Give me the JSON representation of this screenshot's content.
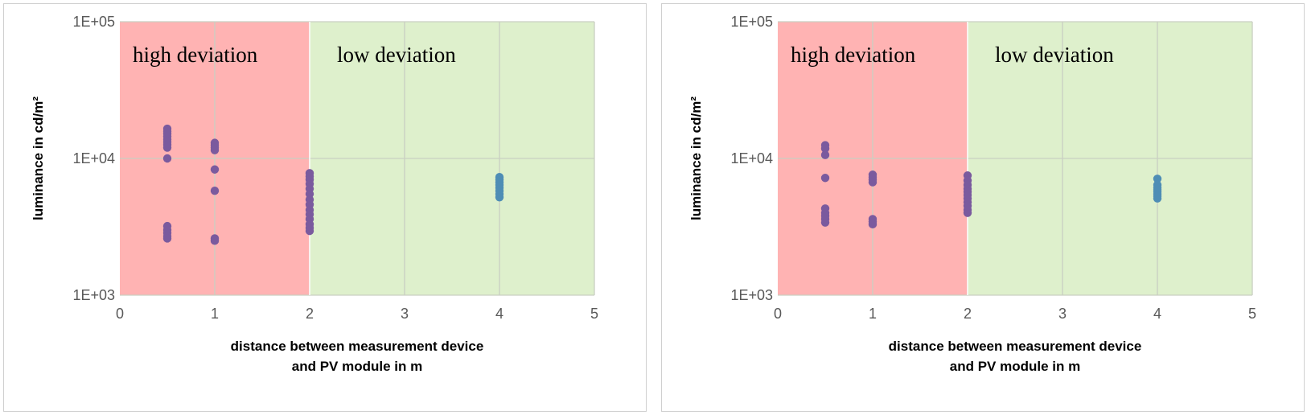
{
  "chart_data": [
    {
      "type": "scatter",
      "xlabel_lines": [
        "distance between measurement device",
        "and PV module in m"
      ],
      "ylabel": "luminance in cd/m²",
      "xlim": [
        0,
        5
      ],
      "x_ticks": [
        "0",
        "1",
        "2",
        "3",
        "4",
        "5"
      ],
      "ylim": [
        1000,
        100000
      ],
      "y_scale": "log",
      "y_ticks": [
        "1E+03",
        "1E+04",
        "1E+05"
      ],
      "grid": true,
      "regions": [
        {
          "label": "high deviation",
          "x_range": [
            0,
            2
          ],
          "color": "#ffb3b3"
        },
        {
          "label": "low deviation",
          "x_range": [
            2,
            5
          ],
          "color": "#def0cc"
        }
      ],
      "series": [
        {
          "color": "#7a5a9e",
          "points": [
            [
              0.5,
              16500
            ],
            [
              0.5,
              15800
            ],
            [
              0.5,
              15200
            ],
            [
              0.5,
              14500
            ],
            [
              0.5,
              13800
            ],
            [
              0.5,
              13200
            ],
            [
              0.5,
              12600
            ],
            [
              0.5,
              12000
            ],
            [
              0.5,
              10000
            ],
            [
              0.5,
              3200
            ],
            [
              0.5,
              3000
            ],
            [
              0.5,
              2850
            ],
            [
              0.5,
              2700
            ],
            [
              0.5,
              2600
            ],
            [
              1,
              13000
            ],
            [
              1,
              12500
            ],
            [
              1,
              12000
            ],
            [
              1,
              11500
            ],
            [
              1,
              8300
            ],
            [
              1,
              5800
            ],
            [
              1,
              2600
            ],
            [
              1,
              2500
            ],
            [
              2,
              7800
            ],
            [
              2,
              7400
            ],
            [
              2,
              7000
            ],
            [
              2,
              6500
            ],
            [
              2,
              6000
            ],
            [
              2,
              5500
            ],
            [
              2,
              5000
            ],
            [
              2,
              4600
            ],
            [
              2,
              4200
            ],
            [
              2,
              3900
            ],
            [
              2,
              3600
            ],
            [
              2,
              3300
            ],
            [
              2,
              3100
            ],
            [
              2,
              2950
            ]
          ]
        },
        {
          "color": "#4e8db5",
          "points": [
            [
              4,
              7300
            ],
            [
              4,
              7000
            ],
            [
              4,
              6700
            ],
            [
              4,
              6400
            ],
            [
              4,
              6100
            ],
            [
              4,
              5800
            ],
            [
              4,
              5500
            ],
            [
              4,
              5200
            ]
          ]
        }
      ]
    },
    {
      "type": "scatter",
      "xlabel_lines": [
        "distance between measurement device",
        "and PV module in m"
      ],
      "ylabel": "luminance in cd/m²",
      "xlim": [
        0,
        5
      ],
      "x_ticks": [
        "0",
        "1",
        "2",
        "3",
        "4",
        "5"
      ],
      "ylim": [
        1000,
        100000
      ],
      "y_scale": "log",
      "y_ticks": [
        "1E+03",
        "1E+04",
        "1E+05"
      ],
      "grid": true,
      "regions": [
        {
          "label": "high deviation",
          "x_range": [
            0,
            2
          ],
          "color": "#ffb3b3"
        },
        {
          "label": "low deviation",
          "x_range": [
            2,
            5
          ],
          "color": "#def0cc"
        }
      ],
      "series": [
        {
          "color": "#7a5a9e",
          "points": [
            [
              0.5,
              12500
            ],
            [
              0.5,
              11800
            ],
            [
              0.5,
              10600
            ],
            [
              0.5,
              7200
            ],
            [
              0.5,
              4300
            ],
            [
              0.5,
              4000
            ],
            [
              0.5,
              3800
            ],
            [
              0.5,
              3600
            ],
            [
              0.5,
              3400
            ],
            [
              1,
              7600
            ],
            [
              1,
              7300
            ],
            [
              1,
              7000
            ],
            [
              1,
              6700
            ],
            [
              1,
              3600
            ],
            [
              1,
              3450
            ],
            [
              1,
              3300
            ],
            [
              2,
              7500
            ],
            [
              2,
              6900
            ],
            [
              2,
              6400
            ],
            [
              2,
              6000
            ],
            [
              2,
              5700
            ],
            [
              2,
              5400
            ],
            [
              2,
              5100
            ],
            [
              2,
              4800
            ],
            [
              2,
              4500
            ],
            [
              2,
              4200
            ],
            [
              2,
              4000
            ]
          ]
        },
        {
          "color": "#4e8db5",
          "points": [
            [
              4,
              7100
            ],
            [
              4,
              6400
            ],
            [
              4,
              6100
            ],
            [
              4,
              5900
            ],
            [
              4,
              5700
            ],
            [
              4,
              5500
            ],
            [
              4,
              5300
            ],
            [
              4,
              5100
            ]
          ]
        }
      ]
    }
  ]
}
